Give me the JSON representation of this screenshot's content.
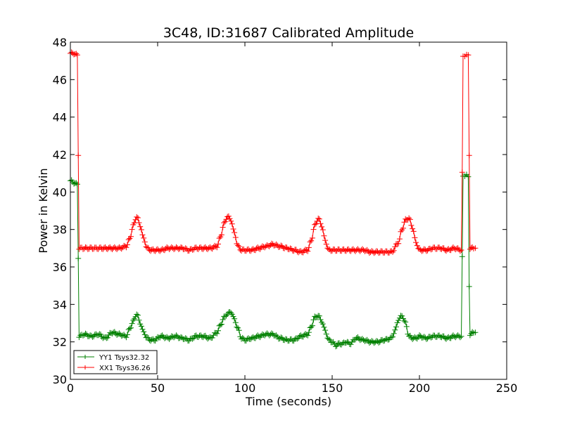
{
  "chart_data": {
    "type": "line",
    "title": "3C48, ID:31687 Calibrated Amplitude",
    "xlabel": "Time (seconds)",
    "ylabel": "Power in Kelvin",
    "xlim": [
      0,
      250
    ],
    "ylim": [
      30,
      48
    ],
    "xticks": [
      "0",
      "50",
      "100",
      "150",
      "200",
      "250"
    ],
    "yticks": [
      "30",
      "32",
      "34",
      "36",
      "38",
      "40",
      "42",
      "44",
      "46",
      "48"
    ],
    "grid": false,
    "legend_position": "lower-left",
    "marker": "plus",
    "series": [
      {
        "name": "YY1 Tsys32.32",
        "color": "#008000",
        "x": [
          0,
          2,
          4,
          4.5,
          5,
          8,
          12,
          16,
          20,
          24,
          28,
          32,
          34,
          36,
          38,
          40,
          42,
          44,
          46,
          48,
          52,
          56,
          60,
          64,
          68,
          72,
          76,
          80,
          84,
          86,
          88,
          90,
          92,
          94,
          96,
          98,
          100,
          104,
          108,
          112,
          116,
          120,
          124,
          128,
          132,
          136,
          138,
          140,
          142,
          144,
          146,
          148,
          150,
          152,
          154,
          156,
          158,
          160,
          164,
          168,
          172,
          176,
          180,
          184,
          186,
          188,
          190,
          192,
          194,
          196,
          198,
          200,
          204,
          208,
          212,
          216,
          220,
          224,
          224.5,
          225,
          226,
          227,
          228,
          228.5,
          229,
          231,
          232
        ],
        "y": [
          40.6,
          40.5,
          40.4,
          36.5,
          32.3,
          32.4,
          32.3,
          32.4,
          32.2,
          32.5,
          32.4,
          32.3,
          32.7,
          33.1,
          33.5,
          33.0,
          32.5,
          32.2,
          32.1,
          32.1,
          32.3,
          32.2,
          32.3,
          32.2,
          32.1,
          32.3,
          32.3,
          32.2,
          32.5,
          32.9,
          33.3,
          33.5,
          33.6,
          33.2,
          32.7,
          32.2,
          32.1,
          32.2,
          32.3,
          32.4,
          32.4,
          32.2,
          32.1,
          32.1,
          32.3,
          32.4,
          32.8,
          33.3,
          33.4,
          33.1,
          32.6,
          32.1,
          32.0,
          31.8,
          31.9,
          31.9,
          32.0,
          31.9,
          32.2,
          32.1,
          32.0,
          32.0,
          32.1,
          32.2,
          32.6,
          33.2,
          33.4,
          33.0,
          32.3,
          32.2,
          32.2,
          32.3,
          32.2,
          32.3,
          32.3,
          32.2,
          32.3,
          32.3,
          36.5,
          40.8,
          40.9,
          40.9,
          40.8,
          35.0,
          32.4,
          32.5,
          32.5
        ]
      },
      {
        "name": "XX1 Tsys36.26",
        "color": "#ff0000",
        "x": [
          0,
          2,
          4,
          4.5,
          5,
          8,
          12,
          16,
          20,
          24,
          28,
          32,
          34,
          36,
          38,
          40,
          42,
          44,
          46,
          48,
          52,
          56,
          60,
          64,
          68,
          72,
          76,
          80,
          84,
          86,
          88,
          90,
          92,
          94,
          96,
          98,
          100,
          104,
          108,
          112,
          116,
          120,
          124,
          128,
          132,
          136,
          138,
          140,
          142,
          144,
          146,
          148,
          150,
          152,
          156,
          160,
          164,
          168,
          172,
          176,
          180,
          184,
          188,
          190,
          192,
          194,
          196,
          198,
          200,
          204,
          208,
          212,
          216,
          220,
          224,
          224.5,
          225,
          226,
          227,
          228,
          228.5,
          229,
          231,
          232
        ],
        "y": [
          47.4,
          47.4,
          47.3,
          42.0,
          37.0,
          37.0,
          37.0,
          37.0,
          37.0,
          37.0,
          37.0,
          37.1,
          37.5,
          38.2,
          38.7,
          38.2,
          37.5,
          37.0,
          36.9,
          36.9,
          36.9,
          37.0,
          37.0,
          37.0,
          36.9,
          37.0,
          37.0,
          37.0,
          37.1,
          37.6,
          38.3,
          38.7,
          38.5,
          37.8,
          37.1,
          36.9,
          36.9,
          36.9,
          37.0,
          37.1,
          37.2,
          37.1,
          37.0,
          36.9,
          36.8,
          36.9,
          37.4,
          38.2,
          38.6,
          38.2,
          37.4,
          36.9,
          36.9,
          36.9,
          36.9,
          36.9,
          36.9,
          36.9,
          36.8,
          36.8,
          36.8,
          36.8,
          37.3,
          38.0,
          38.5,
          38.6,
          38.1,
          37.3,
          36.9,
          36.9,
          37.0,
          37.0,
          36.9,
          37.0,
          36.9,
          41.0,
          47.2,
          47.3,
          47.3,
          47.3,
          42.0,
          37.0,
          37.0,
          37.0
        ]
      }
    ]
  }
}
